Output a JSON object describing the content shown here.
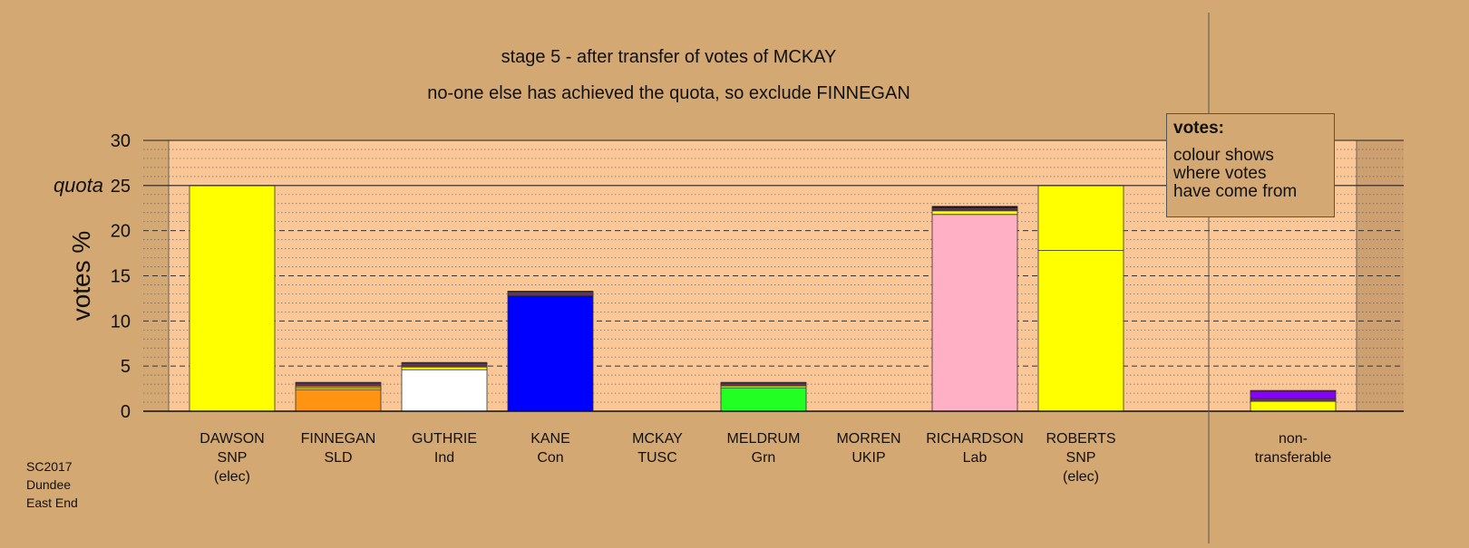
{
  "title": "stage 5 - after transfer of votes of MCKAY",
  "subtitle": "no-one else has achieved the quota, so exclude FINNEGAN",
  "footer": [
    "SC2017",
    "Dundee",
    "East End"
  ],
  "legend": {
    "title": "votes:",
    "lines": [
      "colour shows",
      "where votes",
      "have come from"
    ]
  },
  "chart_data": {
    "type": "bar",
    "stacked": true,
    "ylabel": "votes %",
    "ylim": [
      0,
      30
    ],
    "yticks": [
      0,
      5,
      10,
      15,
      20,
      25,
      30
    ],
    "quota": 25,
    "quota_label": "quota",
    "grid": true,
    "categories": [
      {
        "lines": [
          "DAWSON",
          "SNP",
          "(elec)"
        ],
        "segments": [
          {
            "value": 25.0,
            "color": "#ffff00"
          }
        ]
      },
      {
        "lines": [
          "FINNEGAN",
          "SLD"
        ],
        "segments": [
          {
            "value": 2.4,
            "color": "#ff9412"
          },
          {
            "value": 0.2,
            "color": "#ffff00"
          },
          {
            "value": 0.2,
            "color": "#ff9412"
          },
          {
            "value": 0.3,
            "color": "#6b3060"
          },
          {
            "value": 0.1,
            "color": "#111111"
          }
        ]
      },
      {
        "lines": [
          "GUTHRIE",
          "Ind"
        ],
        "segments": [
          {
            "value": 4.6,
            "color": "#ffffff"
          },
          {
            "value": 0.3,
            "color": "#ffff00"
          },
          {
            "value": 0.1,
            "color": "#ff9412"
          },
          {
            "value": 0.3,
            "color": "#6b3060"
          },
          {
            "value": 0.1,
            "color": "#111111"
          }
        ]
      },
      {
        "lines": [
          "KANE",
          "Con"
        ],
        "segments": [
          {
            "value": 12.8,
            "color": "#0000ff"
          },
          {
            "value": 0.4,
            "color": "#6b3060"
          },
          {
            "value": 0.1,
            "color": "#111111"
          }
        ]
      },
      {
        "lines": [
          "MCKAY",
          "TUSC"
        ],
        "segments": []
      },
      {
        "lines": [
          "MELDRUM",
          "Grn"
        ],
        "segments": [
          {
            "value": 2.6,
            "color": "#22ff22"
          },
          {
            "value": 0.2,
            "color": "#ffff00"
          },
          {
            "value": 0.3,
            "color": "#6b3060"
          },
          {
            "value": 0.1,
            "color": "#111111"
          }
        ]
      },
      {
        "lines": [
          "MORREN",
          "UKIP"
        ],
        "segments": []
      },
      {
        "lines": [
          "RICHARDSON",
          "Lab"
        ],
        "segments": [
          {
            "value": 21.8,
            "color": "#ffb0c4"
          },
          {
            "value": 0.4,
            "color": "#ffff00"
          },
          {
            "value": 0.1,
            "color": "#ff9412"
          },
          {
            "value": 0.2,
            "color": "#6b3060"
          },
          {
            "value": 0.2,
            "color": "#111111"
          }
        ]
      },
      {
        "lines": [
          "ROBERTS",
          "SNP",
          "(elec)"
        ],
        "segments": [
          {
            "value": 17.8,
            "color": "#ffff00"
          },
          {
            "value": 7.2,
            "color": "#ffff00"
          }
        ]
      },
      {
        "lines": [
          "non-",
          "transferable"
        ],
        "segments": [
          {
            "value": 1.1,
            "color": "#ffff00"
          },
          {
            "value": 0.3,
            "color": "#6b3060"
          },
          {
            "value": 0.8,
            "color": "#8800ff"
          },
          {
            "value": 0.1,
            "color": "#111111"
          }
        ]
      }
    ]
  }
}
